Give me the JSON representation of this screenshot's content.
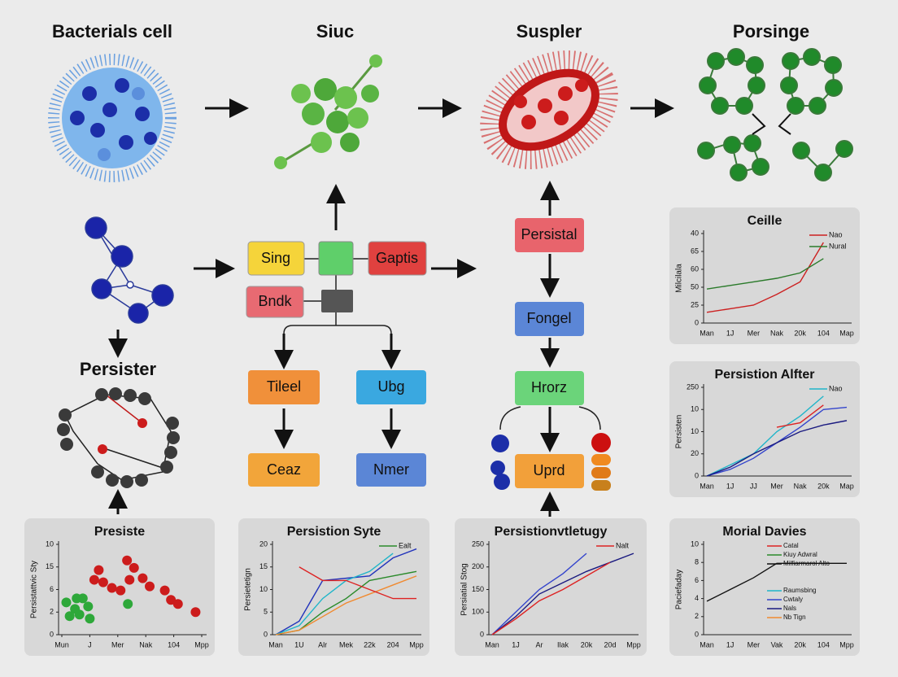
{
  "headers": [
    "Bacterials cell",
    "Siuc",
    "Suspler",
    "Porsinge"
  ],
  "persister_label": "Persister",
  "boxes": {
    "sing": "Sing",
    "gaptis": "Gaptis",
    "bndk": "Bndk",
    "tileel": "Tileel",
    "ubg": "Ubg",
    "ceaz": "Ceaz",
    "nmer": "Nmer",
    "persistal": "Persistal",
    "fongel": "Fongel",
    "hrorz": "Hrorz",
    "uprd": "Uprd"
  },
  "chart_data": [
    {
      "type": "line",
      "title": "Ceille",
      "ylabel": "Milcilala",
      "categories": [
        "Man",
        "1J",
        "Mer",
        "Nak",
        "20k",
        "104",
        "Map"
      ],
      "ylim": [
        0,
        5
      ],
      "yticks": [
        0,
        {
          "value": 1,
          "label": "25"
        },
        {
          "value": 2,
          "label": "50"
        },
        {
          "value": 3,
          "label": "60"
        },
        {
          "value": 4,
          "label": "65"
        },
        {
          "value": 5,
          "label": "40"
        }
      ],
      "series": [
        {
          "name": "Nao",
          "color": "#cc2020",
          "values": [
            0.6,
            0.8,
            1.0,
            1.6,
            2.3,
            4.5,
            null
          ]
        },
        {
          "name": "Nural",
          "color": "#2a7a2a",
          "values": [
            1.9,
            2.1,
            2.3,
            2.5,
            2.8,
            3.6,
            null
          ]
        }
      ]
    },
    {
      "type": "line",
      "title": "Persistion Alfter",
      "ylabel": "Persisten",
      "categories": [
        "Man",
        "1J",
        "JJ",
        "Mer",
        "Nak",
        "20k",
        "Map"
      ],
      "ylim": [
        0,
        4
      ],
      "yticks": [
        0,
        {
          "value": 1,
          "label": "20"
        },
        {
          "value": 2,
          "label": "10"
        },
        {
          "value": 3,
          "label": "10"
        },
        {
          "value": 4,
          "label": "250"
        }
      ],
      "series": [
        {
          "name": "Nao",
          "color": "#1fb5c9",
          "values": [
            0,
            0.5,
            1.0,
            2.0,
            2.7,
            3.6,
            null
          ]
        },
        {
          "color": "#3344cc",
          "values": [
            0,
            0.3,
            0.8,
            1.5,
            2.2,
            3.0,
            3.1
          ]
        },
        {
          "color": "#1a1a80",
          "values": [
            0,
            0.4,
            1.0,
            1.5,
            2.0,
            2.3,
            2.5
          ]
        },
        {
          "color": "#dd2222",
          "values": [
            null,
            null,
            null,
            2.2,
            2.4,
            3.2,
            null
          ]
        }
      ]
    },
    {
      "type": "line",
      "title": "Morial Davies",
      "ylabel": "Paciefaday",
      "categories": [
        "Man",
        "1J",
        "Mer",
        "Vak",
        "20k",
        "104",
        "Mpp"
      ],
      "ylim": [
        0,
        10
      ],
      "yticks": [
        0,
        2,
        4,
        6,
        8,
        10
      ],
      "series": [
        {
          "color": "#111111",
          "values": [
            3.7,
            5.0,
            6.3,
            7.9,
            7.9,
            7.9,
            7.9
          ]
        }
      ],
      "annotations": [
        {
          "text": "Catal",
          "color": "#dd2222"
        },
        {
          "text": "Kiuy Adwral",
          "color": "#2a8a2a"
        },
        {
          "text": "Milfiarmarol Alto",
          "color": "#111111"
        },
        {
          "text": "Raumsbing",
          "color": "#1fb5c9"
        },
        {
          "text": "Cwtaly",
          "color": "#3344cc"
        },
        {
          "text": "Nals",
          "color": "#1a1a80"
        },
        {
          "text": "Nb Tign",
          "color": "#f08a30"
        }
      ]
    },
    {
      "type": "scatter",
      "title": "Presiste",
      "ylabel": "Persistattvic Sty",
      "xlim": [
        0,
        5
      ],
      "xticks": [
        {
          "value": 0,
          "label": "Mun"
        },
        {
          "value": 1,
          "label": "J"
        },
        {
          "value": 2,
          "label": "Mer"
        },
        {
          "value": 3,
          "label": "Nak"
        },
        {
          "value": 4,
          "label": "104"
        },
        {
          "value": 5,
          "label": "Mpp"
        }
      ],
      "ylim": [
        0,
        4
      ],
      "yticks": [
        0,
        {
          "value": 1,
          "label": "2"
        },
        {
          "value": 2,
          "label": "6"
        },
        {
          "value": 3,
          "label": "15"
        },
        {
          "value": 4,
          "label": "10"
        }
      ],
      "series": [
        {
          "color": "#2ea83a",
          "x": [
            0.16,
            0.47,
            0.75,
            0.63,
            0.94,
            0.28,
            1.0,
            2.36,
            0.53
          ],
          "values": [
            1.43,
            1.14,
            1.61,
            0.89,
            1.25,
            0.82,
            0.71,
            1.36,
            1.61
          ]
        },
        {
          "color": "#cc1c1c",
          "x": [
            1.32,
            1.16,
            1.48,
            1.79,
            2.1,
            2.33,
            2.58,
            2.89,
            3.14,
            3.68,
            3.9,
            4.15,
            4.78,
            2.42
          ],
          "values": [
            2.86,
            2.43,
            2.32,
            2.07,
            1.96,
            3.29,
            2.96,
            2.5,
            2.14,
            1.96,
            1.54,
            1.36,
            1.0,
            2.43
          ]
        }
      ]
    },
    {
      "type": "line",
      "title": "Persistion Syte",
      "ylabel": "Persietetign",
      "categories": [
        "Man",
        "1U",
        "Alr",
        "Mek",
        "22k",
        "204",
        "Mpp"
      ],
      "ylim": [
        0,
        20
      ],
      "yticks": [
        0,
        5,
        10,
        15,
        20
      ],
      "series": [
        {
          "color": "#2233bb",
          "values": [
            0,
            3,
            12,
            12.5,
            13,
            17,
            19
          ]
        },
        {
          "color": "#1fb5c9",
          "values": [
            0,
            2,
            8,
            12,
            14,
            18,
            null
          ]
        },
        {
          "name": "Ealt",
          "color": "#2a8a2a",
          "values": [
            0,
            1,
            5,
            8,
            12,
            13,
            14
          ]
        },
        {
          "color": "#f08a30",
          "values": [
            0,
            1,
            4,
            7,
            9,
            11,
            13
          ]
        },
        {
          "color": "#dd2222",
          "values": [
            null,
            15,
            12,
            12,
            10,
            8,
            8
          ]
        }
      ]
    },
    {
      "type": "line",
      "title": "Persistionvtletugy",
      "ylabel": "Persiatial Stog",
      "categories": [
        "Man",
        "1J",
        "Ar",
        "Ilak",
        "20k",
        "20d",
        "Mpp"
      ],
      "ylim": [
        0,
        4
      ],
      "yticks": [
        0,
        {
          "value": 1,
          "label": "100"
        },
        {
          "value": 2,
          "label": "150"
        },
        {
          "value": 3,
          "label": "200"
        },
        {
          "value": 4,
          "label": "250"
        }
      ],
      "series": [
        {
          "color": "#3344cc",
          "values": [
            0,
            1.0,
            2.0,
            2.7,
            3.6,
            null,
            null
          ]
        },
        {
          "color": "#1a1a80",
          "values": [
            0,
            0.8,
            1.8,
            2.3,
            2.8,
            3.2,
            3.6
          ]
        },
        {
          "name": "Nalt",
          "color": "#dd2222",
          "values": [
            0,
            0.7,
            1.5,
            2.0,
            2.6,
            3.2,
            null
          ]
        }
      ]
    }
  ]
}
